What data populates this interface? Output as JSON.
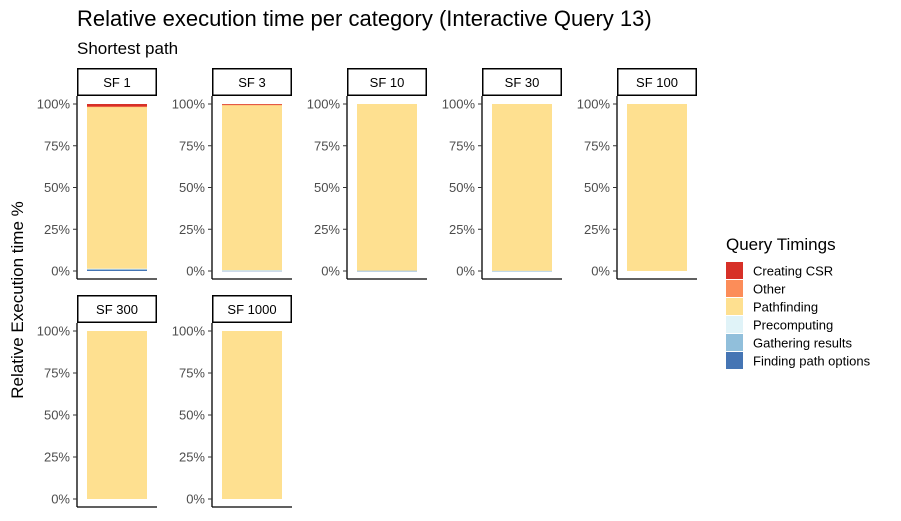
{
  "chart_data": {
    "type": "bar",
    "stacked": true,
    "title": "Relative execution time per category (Interactive Query 13)",
    "subtitle": "Shortest path",
    "ylabel": "Relative Execution time %",
    "xlabel": "",
    "ylim": [
      0,
      1
    ],
    "yticks": [
      "0%",
      "25%",
      "50%",
      "75%",
      "100%"
    ],
    "legend_title": "Query Timings",
    "legend_position": "right",
    "series": [
      {
        "name": "Creating CSR",
        "color": "#d73027"
      },
      {
        "name": "Other",
        "color": "#fc8d59"
      },
      {
        "name": "Pathfinding",
        "color": "#fee090"
      },
      {
        "name": "Precomputing",
        "color": "#e0f3f8"
      },
      {
        "name": "Gathering results",
        "color": "#91bfdb"
      },
      {
        "name": "Finding path options",
        "color": "#4575b4"
      }
    ],
    "facets": [
      {
        "label": "SF 1",
        "values": {
          "Creating CSR": 0.015,
          "Other": 0.003,
          "Pathfinding": 0.968,
          "Precomputing": 0.002,
          "Gathering results": 0.004,
          "Finding path options": 0.008
        }
      },
      {
        "label": "SF 3",
        "values": {
          "Creating CSR": 0.004,
          "Other": 0.001,
          "Pathfinding": 0.99,
          "Precomputing": 0.001,
          "Gathering results": 0.002,
          "Finding path options": 0.002
        }
      },
      {
        "label": "SF 10",
        "values": {
          "Creating CSR": 0.0,
          "Other": 0.0,
          "Pathfinding": 0.998,
          "Precomputing": 0.0,
          "Gathering results": 0.001,
          "Finding path options": 0.001
        }
      },
      {
        "label": "SF 30",
        "values": {
          "Creating CSR": 0.0,
          "Other": 0.0,
          "Pathfinding": 0.999,
          "Precomputing": 0.0,
          "Gathering results": 0.0005,
          "Finding path options": 0.0005
        }
      },
      {
        "label": "SF 100",
        "values": {
          "Creating CSR": 0.0,
          "Other": 0.0,
          "Pathfinding": 1.0,
          "Precomputing": 0.0,
          "Gathering results": 0.0,
          "Finding path options": 0.0
        }
      },
      {
        "label": "SF 300",
        "values": {
          "Creating CSR": 0.0,
          "Other": 0.0,
          "Pathfinding": 1.0,
          "Precomputing": 0.0,
          "Gathering results": 0.0,
          "Finding path options": 0.0
        }
      },
      {
        "label": "SF 1000",
        "values": {
          "Creating CSR": 0.0,
          "Other": 0.0,
          "Pathfinding": 1.0,
          "Precomputing": 0.0,
          "Gathering results": 0.0,
          "Finding path options": 0.0
        }
      }
    ]
  }
}
